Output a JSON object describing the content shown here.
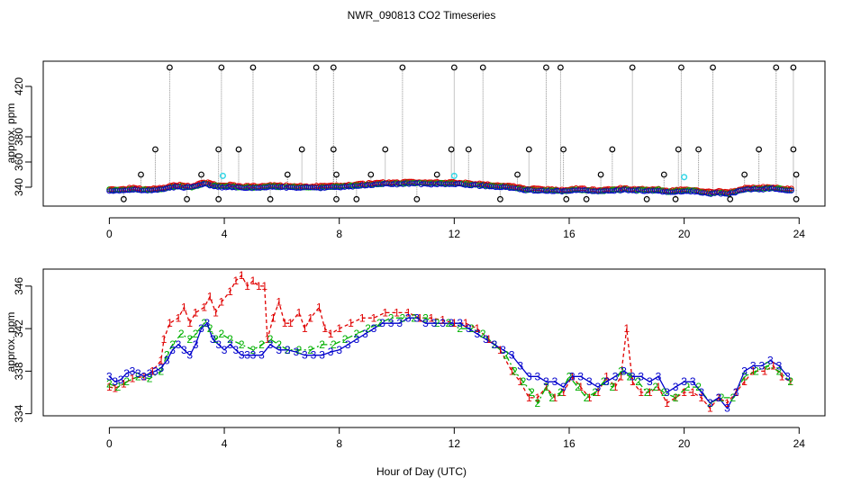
{
  "title": "NWR_090813  CO2 Timeseries",
  "colors": {
    "frame": "#000000",
    "open_circle": "#000000",
    "cyan_circle": "#33d6e6",
    "series1": "#e00000",
    "series2": "#00b000",
    "series3": "#0000cc",
    "stem": "#909090"
  },
  "chart_data": [
    {
      "id": "top",
      "type": "scatter",
      "title": "NWR_090813  CO2 Timeseries",
      "xlabel": "",
      "ylabel": "approx. ppm",
      "xlim": [
        -2.3,
        24.9
      ],
      "ylim": [
        325,
        440
      ],
      "xticks": [
        0,
        4,
        8,
        12,
        16,
        20,
        24
      ],
      "yticks": [
        340,
        360,
        380,
        420
      ],
      "ytick_labels": [
        "340",
        "360",
        "380",
        "420"
      ],
      "grid": false,
      "series_note": "background points with vertical stems to outliers",
      "outliers_top": [
        2.1,
        3.9,
        5.0,
        7.2,
        7.8,
        10.2,
        12.0,
        13.0,
        15.2,
        15.7,
        18.2,
        19.9,
        21.0,
        23.2,
        23.8
      ],
      "outliers_370": [
        1.6,
        3.8,
        4.5,
        6.7,
        7.8,
        9.6,
        11.9,
        12.5,
        14.6,
        15.8,
        17.5,
        19.8,
        20.5,
        22.6,
        23.8
      ],
      "outliers_350": [
        1.1,
        3.2,
        6.2,
        7.9,
        9.1,
        11.4,
        14.2,
        17.1,
        19.3,
        22.1,
        23.9
      ],
      "outliers_low": [
        0.5,
        2.7,
        3.8,
        5.6,
        7.9,
        8.6,
        10.7,
        13.6,
        15.9,
        16.6,
        18.7,
        19.7,
        21.6,
        23.9
      ],
      "cyan_points": [
        {
          "x": 3.95,
          "y": 349
        },
        {
          "x": 12.0,
          "y": 349
        },
        {
          "x": 20.0,
          "y": 348
        }
      ]
    },
    {
      "id": "bottom",
      "type": "line",
      "xlabel": "Hour of Day (UTC)",
      "ylabel": "approx. ppm",
      "xlim": [
        -2.3,
        24.9
      ],
      "ylim": [
        333.8,
        347.6
      ],
      "xticks": [
        0,
        4,
        8,
        12,
        16,
        20,
        24
      ],
      "yticks": [
        334,
        338,
        342,
        346
      ],
      "ytick_labels": [
        "334",
        "338",
        "342",
        "346"
      ],
      "grid": false,
      "series": [
        {
          "name": "1",
          "marker": "1",
          "points": [
            [
              0.0,
              336.5
            ],
            [
              0.2,
              336.4
            ],
            [
              0.5,
              336.8
            ],
            [
              0.8,
              337.3
            ],
            [
              1.2,
              337.5
            ],
            [
              1.5,
              338.0
            ],
            [
              1.8,
              339.0
            ],
            [
              1.9,
              341.0
            ],
            [
              2.1,
              342.5
            ],
            [
              2.4,
              343.0
            ],
            [
              2.6,
              344.0
            ],
            [
              2.8,
              342.5
            ],
            [
              3.0,
              343.5
            ],
            [
              3.3,
              344.0
            ],
            [
              3.5,
              345.0
            ],
            [
              3.7,
              343.5
            ],
            [
              3.9,
              344.5
            ],
            [
              4.2,
              345.5
            ],
            [
              4.4,
              346.5
            ],
            [
              4.6,
              347.0
            ],
            [
              4.8,
              346.0
            ],
            [
              5.0,
              346.5
            ],
            [
              5.2,
              346.0
            ],
            [
              5.4,
              346.0
            ],
            [
              5.5,
              341.0
            ],
            [
              5.7,
              343.0
            ],
            [
              5.9,
              344.5
            ],
            [
              6.1,
              342.5
            ],
            [
              6.3,
              342.5
            ],
            [
              6.6,
              343.5
            ],
            [
              6.8,
              342.0
            ],
            [
              7.0,
              343.0
            ],
            [
              7.3,
              344.0
            ],
            [
              7.5,
              342.0
            ],
            [
              7.7,
              341.5
            ],
            [
              8.0,
              342.0
            ],
            [
              8.4,
              342.5
            ],
            [
              8.8,
              343.0
            ],
            [
              9.2,
              343.0
            ],
            [
              9.6,
              343.5
            ],
            [
              10.0,
              343.5
            ],
            [
              10.4,
              343.5
            ],
            [
              10.8,
              343.0
            ],
            [
              11.2,
              343.0
            ],
            [
              11.6,
              342.8
            ],
            [
              12.0,
              342.5
            ],
            [
              12.4,
              342.5
            ],
            [
              12.8,
              342.0
            ],
            [
              13.2,
              341.0
            ],
            [
              13.6,
              340.0
            ],
            [
              14.0,
              338.0
            ],
            [
              14.3,
              337.0
            ],
            [
              14.6,
              335.5
            ],
            [
              14.9,
              335.5
            ],
            [
              15.2,
              336.5
            ],
            [
              15.5,
              335.5
            ],
            [
              15.8,
              336.0
            ],
            [
              16.1,
              337.5
            ],
            [
              16.4,
              336.5
            ],
            [
              16.7,
              335.5
            ],
            [
              17.0,
              336.0
            ],
            [
              17.3,
              337.5
            ],
            [
              17.6,
              336.5
            ],
            [
              17.8,
              337.5
            ],
            [
              18.0,
              342.0
            ],
            [
              18.2,
              337.0
            ],
            [
              18.5,
              336.0
            ],
            [
              18.8,
              336.0
            ],
            [
              19.1,
              336.5
            ],
            [
              19.4,
              335.0
            ],
            [
              19.7,
              335.5
            ],
            [
              20.0,
              336.0
            ],
            [
              20.3,
              336.0
            ],
            [
              20.6,
              335.5
            ],
            [
              20.9,
              334.5
            ],
            [
              21.2,
              335.5
            ],
            [
              21.5,
              335.0
            ],
            [
              21.8,
              336.0
            ],
            [
              22.1,
              337.0
            ],
            [
              22.4,
              338.0
            ],
            [
              22.8,
              338.0
            ],
            [
              23.1,
              338.5
            ],
            [
              23.4,
              337.5
            ],
            [
              23.7,
              337.0
            ]
          ]
        },
        {
          "name": "2",
          "marker": "2",
          "points": [
            [
              0.0,
              336.8
            ],
            [
              0.3,
              336.5
            ],
            [
              0.6,
              337.0
            ],
            [
              1.0,
              337.5
            ],
            [
              1.4,
              337.3
            ],
            [
              1.8,
              338.0
            ],
            [
              2.0,
              339.5
            ],
            [
              2.2,
              340.5
            ],
            [
              2.5,
              341.5
            ],
            [
              2.8,
              341.0
            ],
            [
              3.0,
              341.5
            ],
            [
              3.3,
              342.5
            ],
            [
              3.5,
              342.0
            ],
            [
              3.7,
              341.0
            ],
            [
              3.9,
              341.5
            ],
            [
              4.2,
              341.0
            ],
            [
              4.6,
              340.5
            ],
            [
              5.0,
              340.0
            ],
            [
              5.3,
              340.5
            ],
            [
              5.6,
              341.0
            ],
            [
              5.9,
              340.5
            ],
            [
              6.2,
              340.0
            ],
            [
              6.6,
              340.0
            ],
            [
              7.0,
              340.0
            ],
            [
              7.4,
              340.5
            ],
            [
              7.8,
              340.5
            ],
            [
              8.2,
              341.0
            ],
            [
              8.6,
              341.5
            ],
            [
              9.0,
              342.0
            ],
            [
              9.4,
              342.5
            ],
            [
              9.8,
              343.0
            ],
            [
              10.2,
              343.0
            ],
            [
              10.6,
              343.0
            ],
            [
              11.0,
              343.0
            ],
            [
              11.4,
              342.5
            ],
            [
              11.8,
              342.5
            ],
            [
              12.2,
              342.0
            ],
            [
              12.6,
              342.0
            ],
            [
              13.0,
              341.5
            ],
            [
              13.4,
              340.5
            ],
            [
              13.8,
              339.5
            ],
            [
              14.1,
              338.0
            ],
            [
              14.4,
              337.0
            ],
            [
              14.7,
              336.0
            ],
            [
              14.9,
              335.0
            ],
            [
              15.2,
              336.5
            ],
            [
              15.4,
              335.5
            ],
            [
              15.7,
              336.0
            ],
            [
              16.0,
              337.5
            ],
            [
              16.3,
              336.5
            ],
            [
              16.6,
              335.5
            ],
            [
              16.9,
              336.0
            ],
            [
              17.2,
              337.0
            ],
            [
              17.5,
              336.5
            ],
            [
              17.8,
              338.0
            ],
            [
              18.1,
              337.5
            ],
            [
              18.4,
              337.0
            ],
            [
              18.7,
              336.0
            ],
            [
              19.0,
              336.5
            ],
            [
              19.3,
              336.0
            ],
            [
              19.7,
              335.5
            ],
            [
              20.1,
              336.5
            ],
            [
              20.5,
              336.5
            ],
            [
              20.9,
              335.0
            ],
            [
              21.3,
              335.5
            ],
            [
              21.7,
              335.5
            ],
            [
              22.1,
              337.5
            ],
            [
              22.5,
              338.0
            ],
            [
              22.9,
              338.5
            ],
            [
              23.3,
              338.0
            ],
            [
              23.7,
              337.0
            ]
          ]
        },
        {
          "name": "3",
          "marker": "3",
          "points": [
            [
              0.0,
              337.5
            ],
            [
              0.2,
              337.0
            ],
            [
              0.4,
              337.2
            ],
            [
              0.6,
              337.8
            ],
            [
              0.8,
              338.0
            ],
            [
              1.0,
              337.8
            ],
            [
              1.2,
              337.5
            ],
            [
              1.4,
              337.8
            ],
            [
              1.6,
              338.0
            ],
            [
              1.8,
              338.3
            ],
            [
              2.0,
              339.0
            ],
            [
              2.2,
              340.0
            ],
            [
              2.4,
              340.5
            ],
            [
              2.6,
              340.0
            ],
            [
              2.8,
              339.5
            ],
            [
              3.0,
              340.5
            ],
            [
              3.2,
              342.0
            ],
            [
              3.4,
              342.5
            ],
            [
              3.6,
              341.0
            ],
            [
              3.8,
              340.5
            ],
            [
              4.0,
              340.0
            ],
            [
              4.2,
              340.5
            ],
            [
              4.4,
              340.0
            ],
            [
              4.6,
              339.5
            ],
            [
              4.8,
              339.5
            ],
            [
              5.0,
              339.5
            ],
            [
              5.3,
              339.5
            ],
            [
              5.6,
              340.5
            ],
            [
              5.9,
              340.0
            ],
            [
              6.2,
              340.0
            ],
            [
              6.5,
              339.8
            ],
            [
              6.8,
              339.5
            ],
            [
              7.1,
              339.5
            ],
            [
              7.4,
              339.5
            ],
            [
              7.7,
              339.8
            ],
            [
              8.0,
              340.0
            ],
            [
              8.3,
              340.5
            ],
            [
              8.6,
              341.0
            ],
            [
              8.9,
              341.5
            ],
            [
              9.2,
              342.0
            ],
            [
              9.5,
              342.5
            ],
            [
              9.8,
              342.5
            ],
            [
              10.1,
              342.5
            ],
            [
              10.4,
              343.0
            ],
            [
              10.7,
              343.0
            ],
            [
              11.0,
              342.5
            ],
            [
              11.3,
              342.5
            ],
            [
              11.6,
              342.5
            ],
            [
              11.9,
              342.5
            ],
            [
              12.2,
              342.5
            ],
            [
              12.5,
              342.0
            ],
            [
              12.8,
              341.5
            ],
            [
              13.1,
              341.0
            ],
            [
              13.4,
              340.5
            ],
            [
              13.7,
              340.0
            ],
            [
              14.0,
              339.5
            ],
            [
              14.3,
              338.5
            ],
            [
              14.6,
              337.5
            ],
            [
              14.9,
              337.5
            ],
            [
              15.2,
              337.0
            ],
            [
              15.5,
              337.0
            ],
            [
              15.8,
              336.5
            ],
            [
              16.1,
              337.5
            ],
            [
              16.4,
              337.5
            ],
            [
              16.7,
              337.0
            ],
            [
              17.0,
              336.5
            ],
            [
              17.3,
              337.0
            ],
            [
              17.6,
              337.5
            ],
            [
              17.9,
              338.0
            ],
            [
              18.2,
              337.5
            ],
            [
              18.5,
              337.5
            ],
            [
              18.8,
              337.0
            ],
            [
              19.1,
              337.5
            ],
            [
              19.4,
              336.0
            ],
            [
              19.7,
              336.5
            ],
            [
              20.0,
              337.0
            ],
            [
              20.3,
              337.0
            ],
            [
              20.6,
              336.0
            ],
            [
              20.9,
              335.0
            ],
            [
              21.2,
              335.5
            ],
            [
              21.5,
              334.5
            ],
            [
              21.8,
              336.0
            ],
            [
              22.1,
              338.0
            ],
            [
              22.4,
              338.5
            ],
            [
              22.7,
              338.5
            ],
            [
              23.0,
              339.0
            ],
            [
              23.3,
              338.5
            ],
            [
              23.6,
              337.5
            ]
          ]
        }
      ]
    }
  ]
}
